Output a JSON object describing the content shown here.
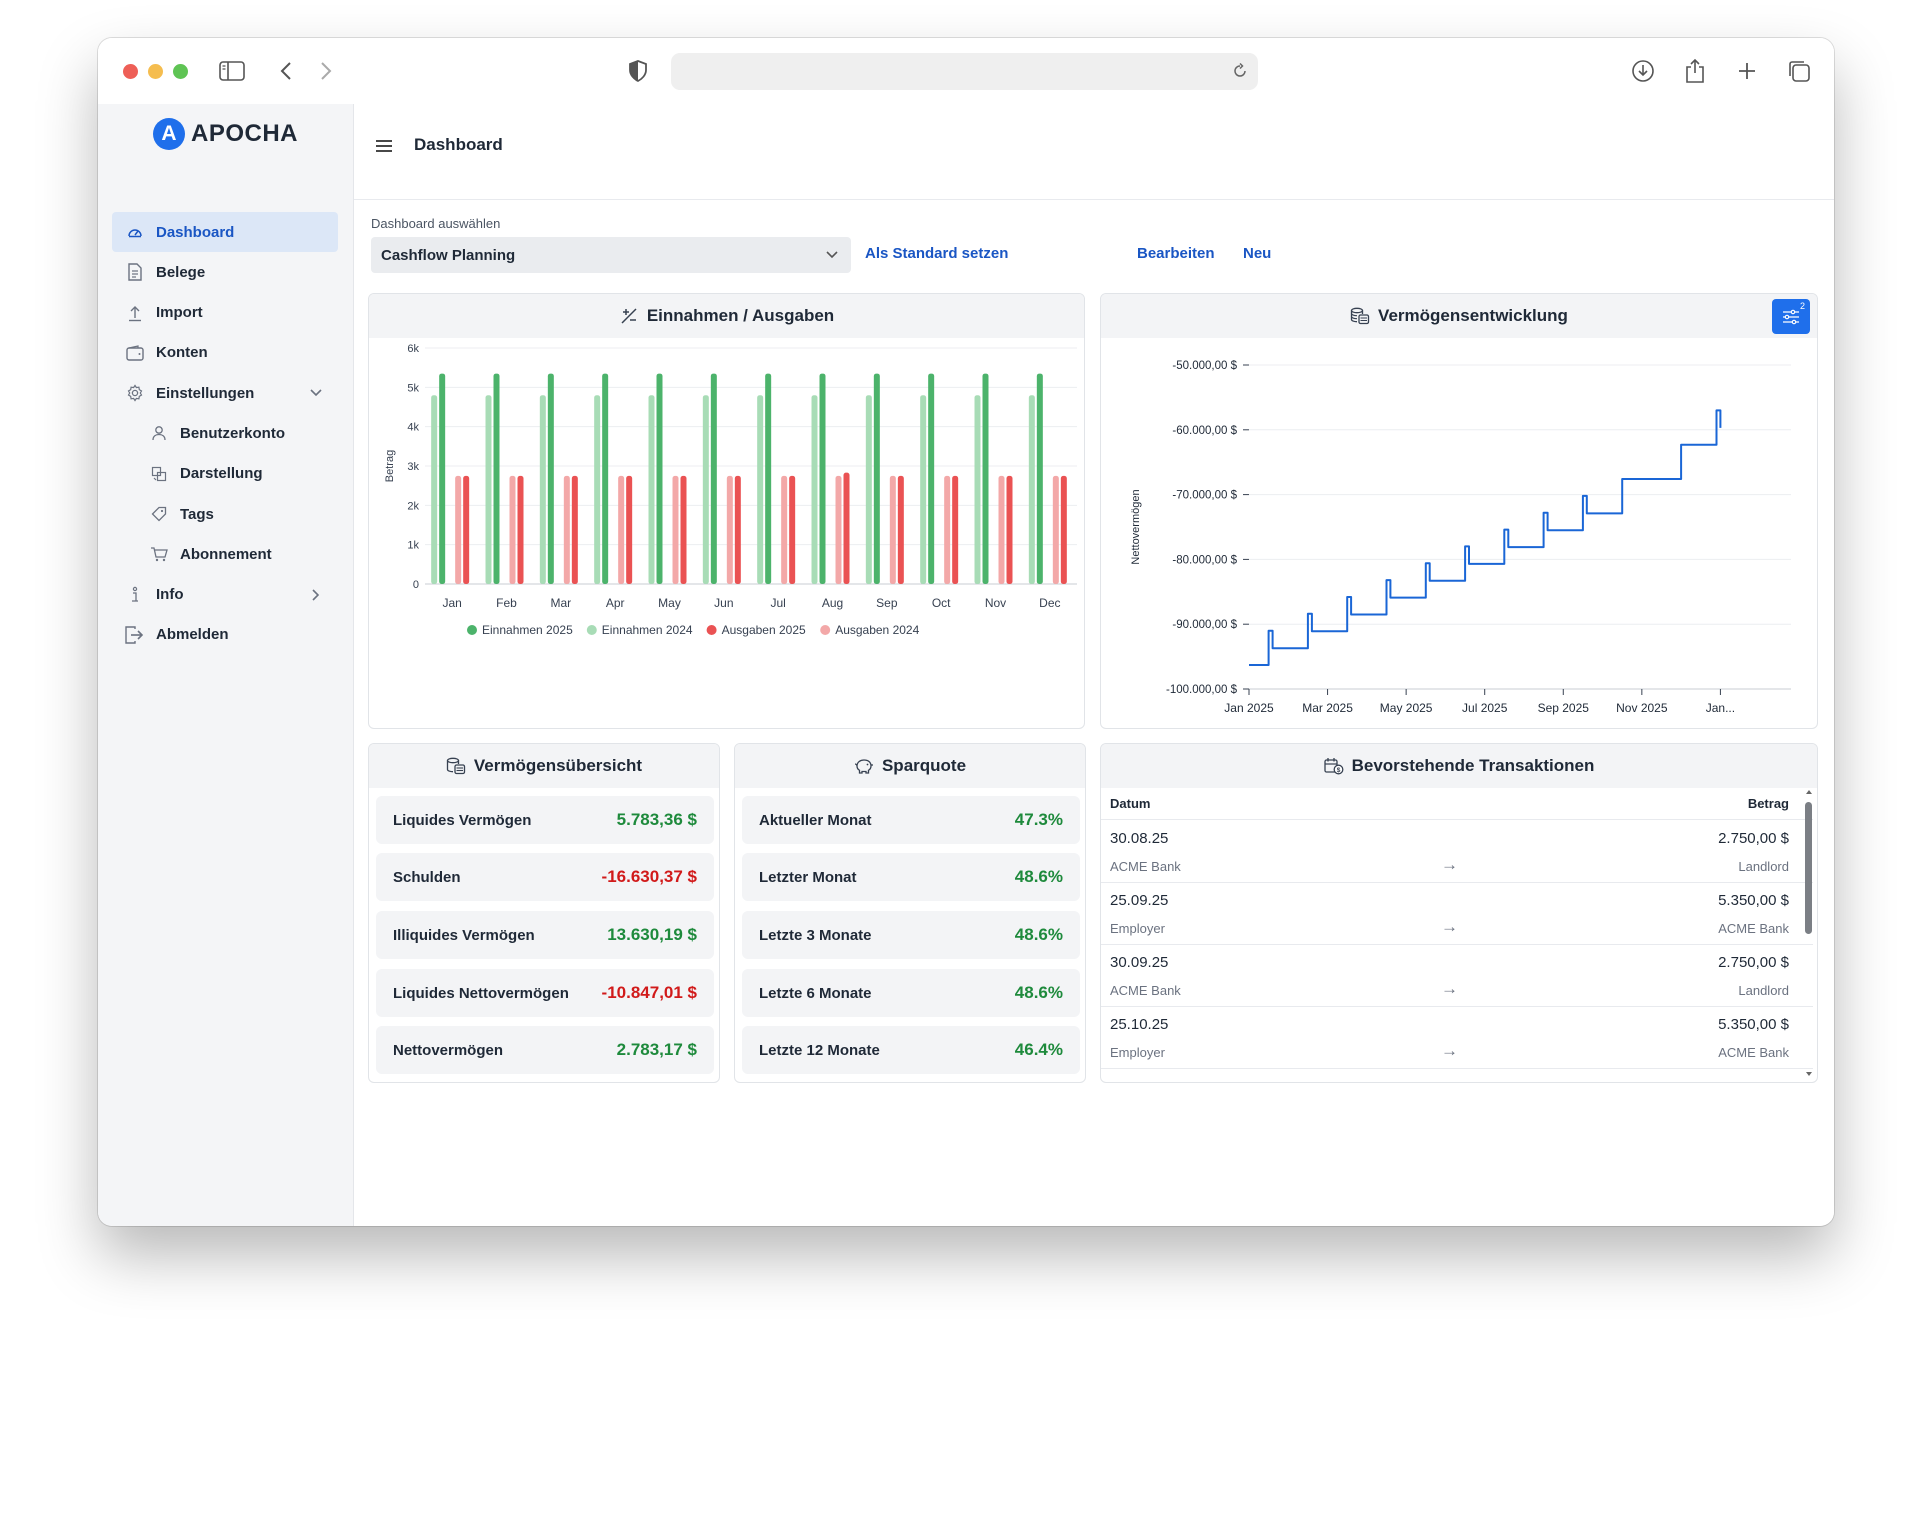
{
  "app": {
    "logo_text": "APOCHA",
    "logo_letter": "A"
  },
  "topbar": {
    "title": "Dashboard"
  },
  "sidebar": {
    "items": [
      {
        "label": "Dashboard",
        "icon": "dashboard-icon",
        "active": true
      },
      {
        "label": "Belege",
        "icon": "document-icon"
      },
      {
        "label": "Import",
        "icon": "upload-icon"
      },
      {
        "label": "Konten",
        "icon": "wallet-icon"
      },
      {
        "label": "Einstellungen",
        "icon": "gear-icon"
      },
      {
        "label": "Benutzerkonto",
        "icon": "user-icon"
      },
      {
        "label": "Darstellung",
        "icon": "palette-icon"
      },
      {
        "label": "Tags",
        "icon": "tag-icon"
      },
      {
        "label": "Abonnement",
        "icon": "cart-icon"
      },
      {
        "label": "Info",
        "icon": "info-icon"
      },
      {
        "label": "Abmelden",
        "icon": "logout-icon"
      }
    ]
  },
  "selector": {
    "label": "Dashboard auswählen",
    "value": "Cashflow Planning",
    "set_default": "Als Standard setzen",
    "edit": "Bearbeiten",
    "new": "Neu"
  },
  "income_chart": {
    "title": "Einnahmen / Ausgaben",
    "ylabel": "Betrag",
    "colors": {
      "inc2025": "#4cb36b",
      "inc2024": "#a8dcb6",
      "exp2025": "#ea5253",
      "exp2024": "#f3a8a8"
    }
  },
  "wealth_chart": {
    "title": "Vermögensentwicklung",
    "ylabel": "Nettovermögen",
    "filter_badge": "2",
    "color": "#1a66d6"
  },
  "chart_data": [
    {
      "type": "bar",
      "title": "Einnahmen / Ausgaben",
      "ylabel": "Betrag",
      "categories": [
        "Jan",
        "Feb",
        "Mar",
        "Apr",
        "May",
        "Jun",
        "Jul",
        "Aug",
        "Sep",
        "Oct",
        "Nov",
        "Dec"
      ],
      "yticks": [
        "0",
        "1k",
        "2k",
        "3k",
        "4k",
        "5k",
        "6k"
      ],
      "ylim": [
        0,
        6000
      ],
      "series": [
        {
          "name": "Einnahmen 2024",
          "values": [
            4800,
            4800,
            4800,
            4800,
            4800,
            4800,
            4800,
            4800,
            4800,
            4800,
            4800,
            4800
          ]
        },
        {
          "name": "Einnahmen 2025",
          "values": [
            5350,
            5350,
            5350,
            5350,
            5350,
            5350,
            5350,
            5350,
            5350,
            5350,
            5350,
            5350
          ]
        },
        {
          "name": "Ausgaben 2024",
          "values": [
            2750,
            2750,
            2750,
            2750,
            2750,
            2750,
            2750,
            2750,
            2750,
            2750,
            2750,
            2750
          ]
        },
        {
          "name": "Ausgaben 2025",
          "values": [
            2750,
            2750,
            2750,
            2750,
            2750,
            2750,
            2750,
            2830,
            2750,
            2750,
            2750,
            2750
          ]
        }
      ],
      "legend": [
        "Einnahmen 2025",
        "Einnahmen 2024",
        "Ausgaben 2025",
        "Ausgaben 2024"
      ],
      "legend_position": "bottom",
      "grid": true
    },
    {
      "type": "line",
      "title": "Vermögensentwicklung",
      "ylabel": "Nettovermögen",
      "ylim": [
        -100000,
        -50000
      ],
      "yticks": [
        "-100.000,00 $",
        "-90.000,00 $",
        "-80.000,00 $",
        "-70.000,00 $",
        "-60.000,00 $",
        "-50.000,00 $"
      ],
      "xticks": [
        "Jan 2025",
        "Mar 2025",
        "May 2025",
        "Jul 2025",
        "Sep 2025",
        "Nov 2025",
        "Jan..."
      ],
      "xlim_months": [
        0,
        12.5
      ],
      "x": [
        0,
        0.5,
        0.5,
        0.6,
        0.6,
        1.0,
        1.0,
        1.5,
        1.5,
        1.6,
        1.6,
        2.0,
        2.0,
        2.5,
        2.5,
        2.6,
        2.6,
        3.0,
        3.0,
        3.5,
        3.5,
        3.6,
        3.6,
        4.0,
        4.0,
        4.5,
        4.5,
        4.6,
        4.6,
        5.0,
        5.0,
        5.5,
        5.5,
        5.6,
        5.6,
        6.0,
        6.0,
        6.5,
        6.5,
        6.6,
        6.6,
        7.0,
        7.0,
        7.5,
        7.5,
        7.6,
        7.6,
        8.0,
        8.0,
        8.5,
        8.5,
        8.6,
        8.6,
        9.0,
        9.0,
        9.5,
        9.5,
        9.6,
        9.6,
        10.0,
        10.0,
        11.0,
        11.0,
        11.9,
        11.9,
        12.0,
        12.0
      ],
      "y": [
        -96300,
        -96300,
        -91000,
        -91000,
        -93700,
        -93700,
        -93700,
        -93700,
        -88400,
        -88400,
        -91100,
        -91100,
        -91100,
        -91100,
        -85800,
        -85800,
        -88500,
        -88500,
        -88500,
        -88500,
        -83200,
        -83200,
        -85900,
        -85900,
        -85900,
        -85900,
        -80600,
        -80600,
        -83300,
        -83300,
        -83300,
        -83300,
        -78000,
        -78000,
        -80700,
        -80700,
        -80700,
        -80700,
        -75400,
        -75400,
        -78100,
        -78100,
        -78100,
        -78100,
        -72800,
        -72800,
        -75500,
        -75500,
        -75500,
        -75500,
        -70200,
        -70200,
        -72900,
        -72900,
        -72900,
        -72900,
        -67600,
        -67600,
        -67600,
        -67600,
        -67600,
        -67600,
        -62300,
        -62300,
        -57000,
        -57000,
        -59700
      ],
      "grid": true
    }
  ],
  "vermoegen": {
    "title": "Vermögensübersicht",
    "rows": [
      {
        "label": "Liquides Vermögen",
        "value": "5.783,36 $",
        "positive": true
      },
      {
        "label": "Schulden",
        "value": "-16.630,37 $",
        "positive": false
      },
      {
        "label": "Illiquides Vermögen",
        "value": "13.630,19 $",
        "positive": true
      },
      {
        "label": "Liquides Nettovermögen",
        "value": "-10.847,01 $",
        "positive": false
      },
      {
        "label": "Nettovermögen",
        "value": "2.783,17 $",
        "positive": true
      }
    ]
  },
  "sparquote": {
    "title": "Sparquote",
    "rows": [
      {
        "label": "Aktueller Monat",
        "value": "47.3%"
      },
      {
        "label": "Letzter Monat",
        "value": "48.6%"
      },
      {
        "label": "Letzte 3 Monate",
        "value": "48.6%"
      },
      {
        "label": "Letzte 6 Monate",
        "value": "48.6%"
      },
      {
        "label": "Letzte 12 Monate",
        "value": "46.4%"
      }
    ]
  },
  "transactions": {
    "title": "Bevorstehende Transaktionen",
    "col_date": "Datum",
    "col_amount": "Betrag",
    "arrow": "→",
    "rows": [
      {
        "date": "30.08.25",
        "amount": "2.750,00 $",
        "from": "ACME Bank",
        "to": "Landlord"
      },
      {
        "date": "25.09.25",
        "amount": "5.350,00 $",
        "from": "Employer",
        "to": "ACME Bank"
      },
      {
        "date": "30.09.25",
        "amount": "2.750,00 $",
        "from": "ACME Bank",
        "to": "Landlord"
      },
      {
        "date": "25.10.25",
        "amount": "5.350,00 $",
        "from": "Employer",
        "to": "ACME Bank"
      }
    ]
  }
}
